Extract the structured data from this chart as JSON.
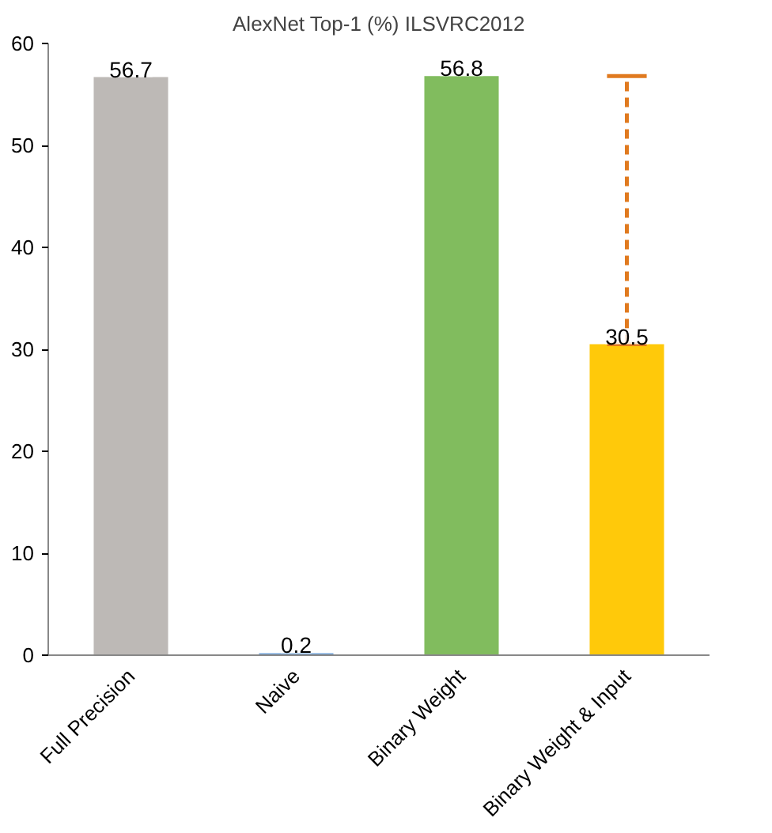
{
  "chart_data": {
    "type": "bar",
    "title": "AlexNet Top-1 (%) ILSVRC2012",
    "categories": [
      "Full Precision",
      "Naive",
      "Binary Weight",
      "Binary Weight & Input"
    ],
    "values": [
      56.7,
      0.2,
      56.8,
      30.5
    ],
    "colors": [
      "#bdb9b6",
      "#72a4d9",
      "#81bc5e",
      "#ffc90a"
    ],
    "errors": [
      null,
      null,
      null,
      [
        30.5,
        56.8
      ]
    ],
    "ylim": [
      0,
      60
    ],
    "yticks": [
      0,
      10,
      20,
      30,
      40,
      50,
      60
    ],
    "data_labels": true,
    "grid": false
  }
}
